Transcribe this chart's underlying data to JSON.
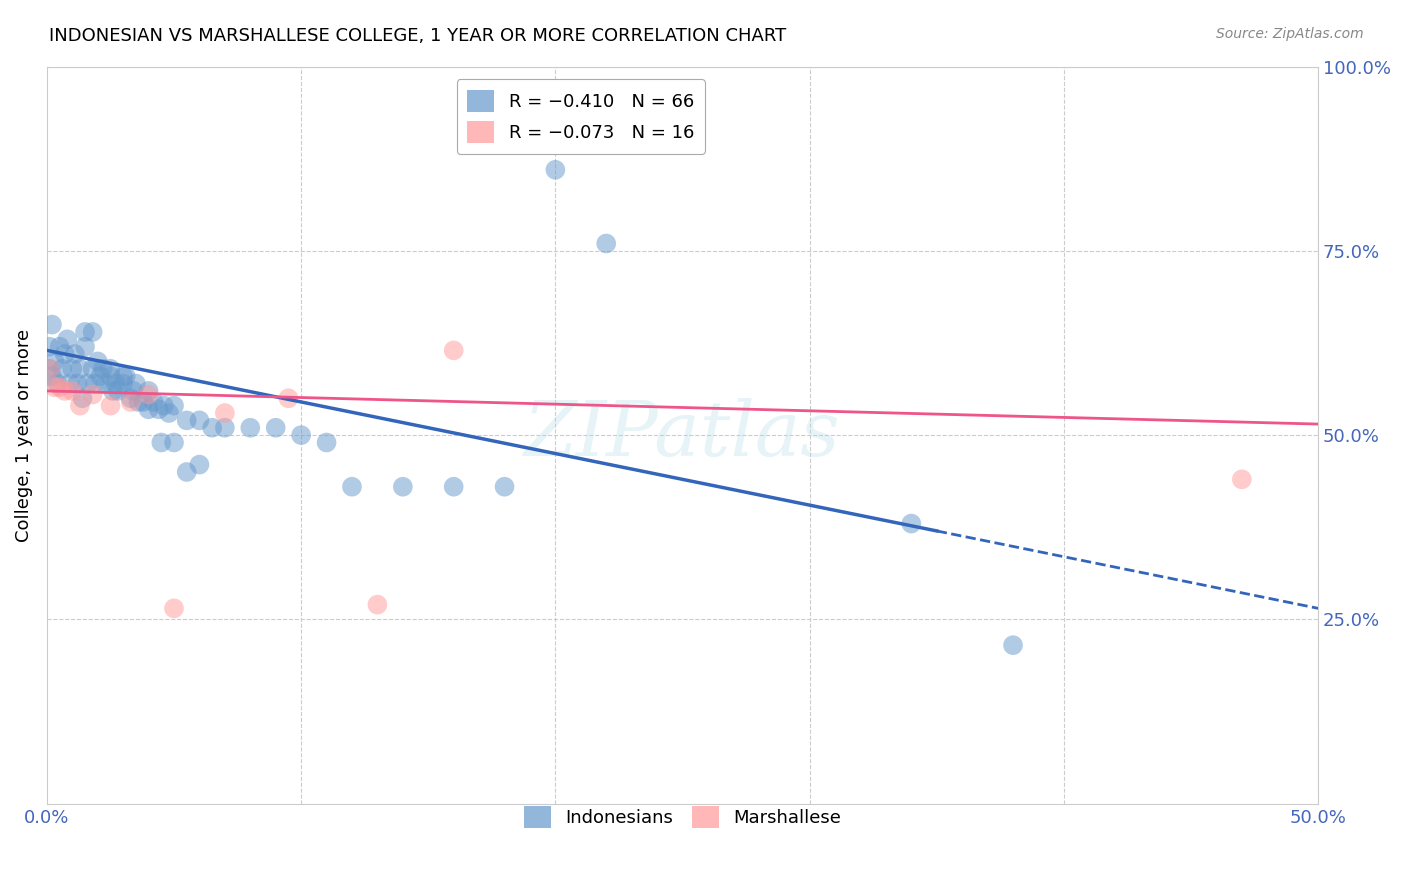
{
  "title": "INDONESIAN VS MARSHALLESE COLLEGE, 1 YEAR OR MORE CORRELATION CHART",
  "source": "Source: ZipAtlas.com",
  "ylabel": "College, 1 year or more",
  "xlim": [
    0.0,
    0.5
  ],
  "ylim": [
    0.0,
    1.0
  ],
  "xtick_labels": [
    "0.0%",
    "",
    "",
    "",
    "",
    "50.0%"
  ],
  "xticks": [
    0.0,
    0.1,
    0.2,
    0.3,
    0.4,
    0.5
  ],
  "ytick_labels_right": [
    "100.0%",
    "75.0%",
    "50.0%",
    "25.0%"
  ],
  "yticks_right": [
    1.0,
    0.75,
    0.5,
    0.25
  ],
  "color_indonesian": "#6699CC",
  "color_marshallese": "#FF9999",
  "trend_indonesian_color": "#3366BB",
  "trend_marshallese_color": "#EE5588",
  "watermark": "ZIPatlas",
  "indonesian_x": [
    0.001,
    0.001,
    0.002,
    0.002,
    0.003,
    0.004,
    0.005,
    0.006,
    0.007,
    0.008,
    0.009,
    0.01,
    0.011,
    0.012,
    0.013,
    0.014,
    0.015,
    0.016,
    0.018,
    0.019,
    0.02,
    0.021,
    0.022,
    0.023,
    0.025,
    0.026,
    0.027,
    0.028,
    0.03,
    0.031,
    0.033,
    0.034,
    0.036,
    0.038,
    0.04,
    0.042,
    0.044,
    0.046,
    0.048,
    0.05,
    0.055,
    0.06,
    0.065,
    0.07,
    0.08,
    0.09,
    0.1,
    0.11,
    0.12,
    0.14,
    0.16,
    0.18,
    0.2,
    0.22,
    0.015,
    0.018,
    0.025,
    0.03,
    0.035,
    0.04,
    0.045,
    0.05,
    0.055,
    0.06,
    0.34,
    0.38
  ],
  "indonesian_y": [
    0.62,
    0.59,
    0.65,
    0.58,
    0.6,
    0.57,
    0.62,
    0.59,
    0.61,
    0.63,
    0.57,
    0.59,
    0.61,
    0.57,
    0.59,
    0.55,
    0.62,
    0.57,
    0.59,
    0.57,
    0.6,
    0.58,
    0.59,
    0.57,
    0.58,
    0.56,
    0.57,
    0.56,
    0.57,
    0.58,
    0.55,
    0.56,
    0.545,
    0.545,
    0.535,
    0.545,
    0.535,
    0.54,
    0.53,
    0.54,
    0.52,
    0.52,
    0.51,
    0.51,
    0.51,
    0.51,
    0.5,
    0.49,
    0.43,
    0.43,
    0.43,
    0.43,
    0.86,
    0.76,
    0.64,
    0.64,
    0.59,
    0.58,
    0.57,
    0.56,
    0.49,
    0.49,
    0.45,
    0.46,
    0.38,
    0.215
  ],
  "marshallese_x": [
    0.001,
    0.003,
    0.005,
    0.007,
    0.01,
    0.013,
    0.018,
    0.025,
    0.033,
    0.04,
    0.05,
    0.07,
    0.095,
    0.13,
    0.16,
    0.47
  ],
  "marshallese_y": [
    0.59,
    0.565,
    0.565,
    0.56,
    0.56,
    0.54,
    0.555,
    0.54,
    0.545,
    0.555,
    0.265,
    0.53,
    0.55,
    0.27,
    0.615,
    0.44
  ],
  "ind_line_x0": 0.0,
  "ind_line_x_solid_end": 0.35,
  "ind_line_x_dash_end": 0.5,
  "ind_line_y0": 0.615,
  "ind_line_slope": -0.7,
  "mar_line_y0": 0.56,
  "mar_line_slope": -0.09
}
